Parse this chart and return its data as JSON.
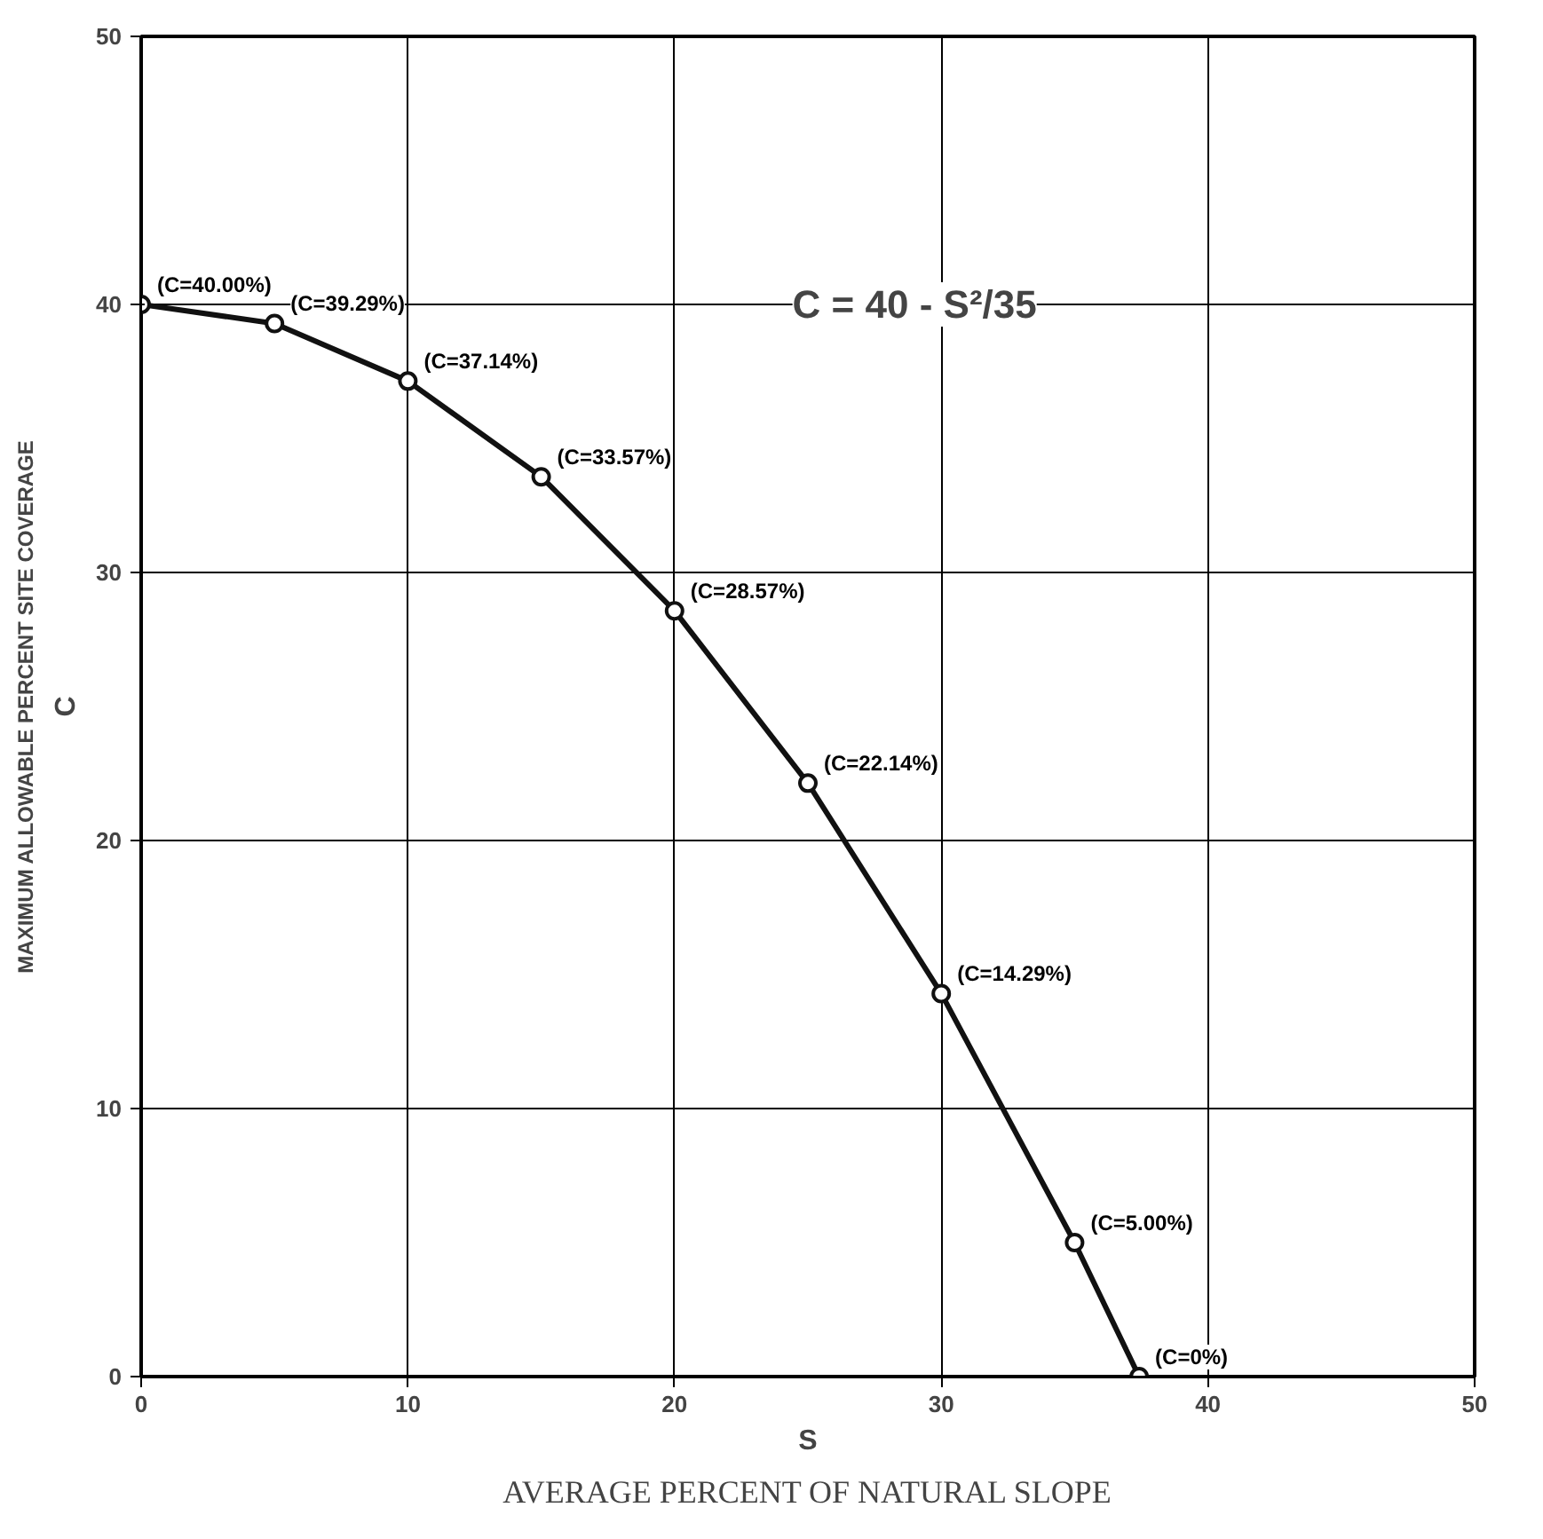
{
  "chart_data": {
    "type": "line",
    "xlabel": "S",
    "ylabel": "C",
    "x": [
      0,
      5,
      10,
      15,
      20,
      25,
      30,
      35,
      37.42
    ],
    "series": [
      {
        "color": "#111111",
        "values": [
          40,
          39.29,
          37.14,
          33.57,
          28.57,
          22.14,
          14.29,
          5.0,
          0
        ],
        "value_labels": [
          "(C=40.00%)",
          "(C=39.29%)",
          "(C=37.14%)",
          "(C=33.57%)",
          "(C=28.57%)",
          "(C=22.14%)",
          "(C=14.29%)",
          "(C=5.00%)",
          "(C=0%)"
        ]
      }
    ],
    "annotations": [
      "C = 40 - S²/35",
      "AVERAGE PERCENT OF NATURAL SLOPE",
      "MAXIMUM ALLOWABLE PERCENT SITE COVERAGE"
    ],
    "xlim": [
      0,
      50
    ],
    "ylim": [
      0,
      50
    ],
    "xticks": [
      0,
      10,
      20,
      30,
      40,
      50
    ],
    "yticks": [
      0,
      10,
      20,
      30,
      40,
      50
    ],
    "grid": true,
    "marker": "circle",
    "line_style": "solid"
  }
}
